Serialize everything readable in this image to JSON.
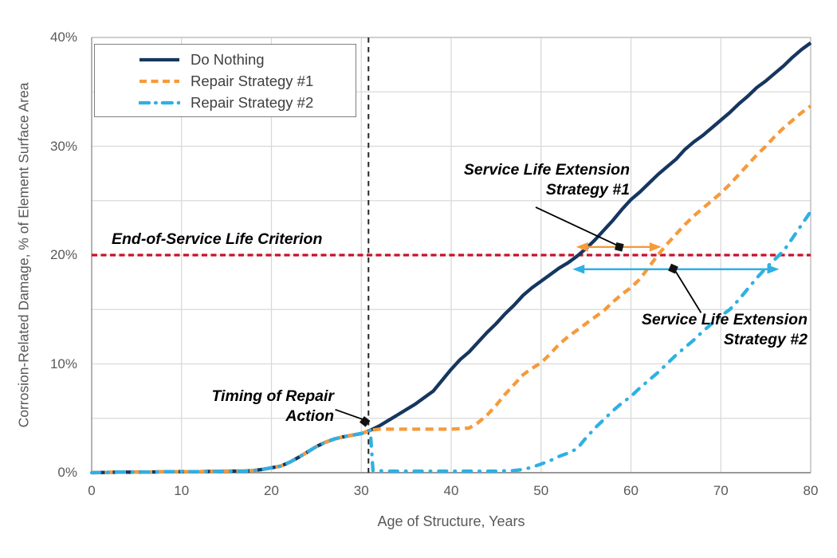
{
  "chart_data": {
    "type": "line",
    "title": "",
    "xlabel": "Age of Structure, Years",
    "ylabel": "Corrosion-Related Damage, % of Element Surface Area",
    "xlim": [
      0,
      80
    ],
    "ylim": [
      0,
      40
    ],
    "x_ticks": [
      0,
      10,
      20,
      30,
      40,
      50,
      60,
      70,
      80
    ],
    "x_tick_labels": [
      "0",
      "10",
      "20",
      "30",
      "40",
      "50",
      "60",
      "70",
      "80"
    ],
    "y_ticks": [
      0,
      10,
      20,
      30,
      40
    ],
    "y_tick_labels": [
      "0%",
      "10%",
      "20%",
      "30%",
      "40%"
    ],
    "grid": {
      "x_spacing_years": 10,
      "y_spacing_pct": 5,
      "color": "#d9d9d9",
      "border_color": "#bfbfbf",
      "axis_color": "#9a9a9a"
    },
    "legend": {
      "position": "top-left"
    },
    "series": [
      {
        "name": "Do Nothing",
        "color": "#15365f",
        "style": "solid",
        "points": [
          [
            0,
            0
          ],
          [
            3,
            0.05
          ],
          [
            6,
            0.05
          ],
          [
            9,
            0.1
          ],
          [
            12,
            0.1
          ],
          [
            15,
            0.15
          ],
          [
            17,
            0.15
          ],
          [
            18,
            0.2
          ],
          [
            19,
            0.3
          ],
          [
            20,
            0.45
          ],
          [
            21,
            0.6
          ],
          [
            22,
            0.95
          ],
          [
            23,
            1.4
          ],
          [
            24,
            1.9
          ],
          [
            25,
            2.4
          ],
          [
            26,
            2.8
          ],
          [
            27,
            3.1
          ],
          [
            28,
            3.3
          ],
          [
            29,
            3.45
          ],
          [
            30,
            3.6
          ],
          [
            31,
            3.9
          ],
          [
            32,
            4.3
          ],
          [
            33,
            4.8
          ],
          [
            34,
            5.3
          ],
          [
            35,
            5.8
          ],
          [
            36,
            6.3
          ],
          [
            37,
            6.9
          ],
          [
            38,
            7.5
          ],
          [
            39,
            8.5
          ],
          [
            40,
            9.5
          ],
          [
            41,
            10.4
          ],
          [
            42,
            11.1
          ],
          [
            43,
            12
          ],
          [
            44,
            12.9
          ],
          [
            45,
            13.7
          ],
          [
            46,
            14.6
          ],
          [
            47,
            15.4
          ],
          [
            48,
            16.3
          ],
          [
            49,
            17
          ],
          [
            50,
            17.6
          ],
          [
            51,
            18.2
          ],
          [
            52,
            18.8
          ],
          [
            53,
            19.3
          ],
          [
            54,
            19.9
          ],
          [
            55,
            20.6
          ],
          [
            56,
            21.4
          ],
          [
            57,
            22.3
          ],
          [
            58,
            23.2
          ],
          [
            59,
            24.2
          ],
          [
            60,
            25.1
          ],
          [
            61,
            25.8
          ],
          [
            62,
            26.6
          ],
          [
            63,
            27.4
          ],
          [
            64,
            28.1
          ],
          [
            65,
            28.8
          ],
          [
            66,
            29.7
          ],
          [
            67,
            30.4
          ],
          [
            68,
            31
          ],
          [
            69,
            31.7
          ],
          [
            70,
            32.4
          ],
          [
            71,
            33.1
          ],
          [
            72,
            33.9
          ],
          [
            73,
            34.6
          ],
          [
            74,
            35.4
          ],
          [
            75,
            36
          ],
          [
            76,
            36.7
          ],
          [
            77,
            37.4
          ],
          [
            78,
            38.2
          ],
          [
            79,
            38.9
          ],
          [
            80,
            39.5
          ]
        ]
      },
      {
        "name": "Repair Strategy #1",
        "color": "#f59b3c",
        "style": "dashed",
        "points": [
          [
            0,
            0
          ],
          [
            3,
            0.05
          ],
          [
            6,
            0.05
          ],
          [
            9,
            0.1
          ],
          [
            12,
            0.1
          ],
          [
            15,
            0.15
          ],
          [
            17,
            0.15
          ],
          [
            18,
            0.2
          ],
          [
            19,
            0.3
          ],
          [
            20,
            0.45
          ],
          [
            21,
            0.6
          ],
          [
            22,
            0.95
          ],
          [
            23,
            1.4
          ],
          [
            24,
            1.9
          ],
          [
            25,
            2.4
          ],
          [
            26,
            2.8
          ],
          [
            27,
            3.1
          ],
          [
            28,
            3.3
          ],
          [
            29,
            3.45
          ],
          [
            30,
            3.6
          ],
          [
            31,
            3.9
          ],
          [
            32,
            4
          ],
          [
            34,
            4
          ],
          [
            36,
            4
          ],
          [
            38,
            4
          ],
          [
            40,
            4
          ],
          [
            42,
            4.1
          ],
          [
            43,
            4.6
          ],
          [
            44,
            5.3
          ],
          [
            45,
            6.2
          ],
          [
            46,
            7.2
          ],
          [
            47,
            8.1
          ],
          [
            48,
            9
          ],
          [
            49,
            9.6
          ],
          [
            50,
            10.1
          ],
          [
            51,
            10.9
          ],
          [
            52,
            11.8
          ],
          [
            53,
            12.5
          ],
          [
            54,
            13.1
          ],
          [
            55,
            13.7
          ],
          [
            56,
            14.3
          ],
          [
            57,
            14.9
          ],
          [
            58,
            15.7
          ],
          [
            59,
            16.4
          ],
          [
            60,
            17
          ],
          [
            61,
            17.8
          ],
          [
            62,
            18.9
          ],
          [
            63,
            20
          ],
          [
            64,
            21
          ],
          [
            65,
            21.9
          ],
          [
            66,
            22.8
          ],
          [
            67,
            23.6
          ],
          [
            68,
            24.3
          ],
          [
            69,
            25
          ],
          [
            70,
            25.7
          ],
          [
            71,
            26.5
          ],
          [
            72,
            27.4
          ],
          [
            73,
            28.3
          ],
          [
            74,
            29.2
          ],
          [
            75,
            30
          ],
          [
            76,
            30.9
          ],
          [
            77,
            31.7
          ],
          [
            78,
            32.4
          ],
          [
            79,
            33.1
          ],
          [
            80,
            33.7
          ]
        ]
      },
      {
        "name": "Repair Strategy #2",
        "color": "#2fb0e3",
        "style": "dashdot",
        "points": [
          [
            0,
            0
          ],
          [
            3,
            0.05
          ],
          [
            6,
            0.05
          ],
          [
            9,
            0.1
          ],
          [
            12,
            0.1
          ],
          [
            15,
            0.15
          ],
          [
            17,
            0.15
          ],
          [
            18,
            0.2
          ],
          [
            19,
            0.3
          ],
          [
            20,
            0.45
          ],
          [
            21,
            0.6
          ],
          [
            22,
            0.95
          ],
          [
            23,
            1.4
          ],
          [
            24,
            1.9
          ],
          [
            25,
            2.4
          ],
          [
            26,
            2.8
          ],
          [
            27,
            3.1
          ],
          [
            28,
            3.3
          ],
          [
            29,
            3.45
          ],
          [
            30,
            3.6
          ],
          [
            31,
            3.9
          ],
          [
            31.3,
            0.2
          ],
          [
            33,
            0.15
          ],
          [
            36,
            0.15
          ],
          [
            39,
            0.15
          ],
          [
            42,
            0.15
          ],
          [
            45,
            0.15
          ],
          [
            47,
            0.2
          ],
          [
            48,
            0.3
          ],
          [
            49,
            0.5
          ],
          [
            50,
            0.8
          ],
          [
            51,
            1.1
          ],
          [
            52,
            1.5
          ],
          [
            53,
            1.8
          ],
          [
            54,
            2.2
          ],
          [
            55,
            3.2
          ],
          [
            56,
            4.1
          ],
          [
            57,
            4.9
          ],
          [
            58,
            5.7
          ],
          [
            59,
            6.4
          ],
          [
            60,
            7
          ],
          [
            61,
            7.8
          ],
          [
            62,
            8.5
          ],
          [
            63,
            9.2
          ],
          [
            64,
            10
          ],
          [
            65,
            10.8
          ],
          [
            66,
            11.5
          ],
          [
            67,
            12.2
          ],
          [
            68,
            13
          ],
          [
            69,
            13.7
          ],
          [
            70,
            14.4
          ],
          [
            71,
            15
          ],
          [
            72,
            15.9
          ],
          [
            73,
            16.9
          ],
          [
            74,
            17.9
          ],
          [
            75,
            18.8
          ],
          [
            76,
            19.6
          ],
          [
            77,
            20.4
          ],
          [
            78,
            21.6
          ],
          [
            79,
            22.8
          ],
          [
            80,
            24
          ]
        ]
      }
    ],
    "reference_lines": {
      "criterion": {
        "label": "End-of-Service Life Criterion",
        "y": 20,
        "color": "#c8102e",
        "style": "dashed"
      },
      "repair_timing": {
        "x": 30.8,
        "color": "#262626",
        "style": "dashed"
      }
    },
    "annotations": {
      "criterion_label": "End-of-Service Life Criterion",
      "timing": {
        "line1": "Timing of Repair",
        "line2": "Action",
        "leader": [
          [
            27.1,
            5.8
          ],
          [
            30.35,
            4.85
          ]
        ],
        "marker": [
          30.4,
          4.7
        ]
      },
      "strategy1": {
        "line1": "Service Life Extension",
        "line2": "Strategy #1",
        "arrow": {
          "from_x": 53.9,
          "to_x": 63.4,
          "y": 20.75,
          "color": "#f59b3c"
        },
        "leader": [
          [
            49.4,
            24.4
          ],
          [
            58.6,
            20.85
          ]
        ],
        "marker": [
          58.7,
          20.75
        ]
      },
      "strategy2": {
        "line1": "Service Life Extension",
        "line2": "Strategy #2",
        "arrow": {
          "from_x": 53.5,
          "to_x": 76.5,
          "y": 18.7,
          "color": "#2fb0e3"
        },
        "leader": [
          [
            64.9,
            18.6
          ],
          [
            67.8,
            14.7
          ]
        ],
        "marker": [
          64.7,
          18.75
        ]
      }
    }
  }
}
